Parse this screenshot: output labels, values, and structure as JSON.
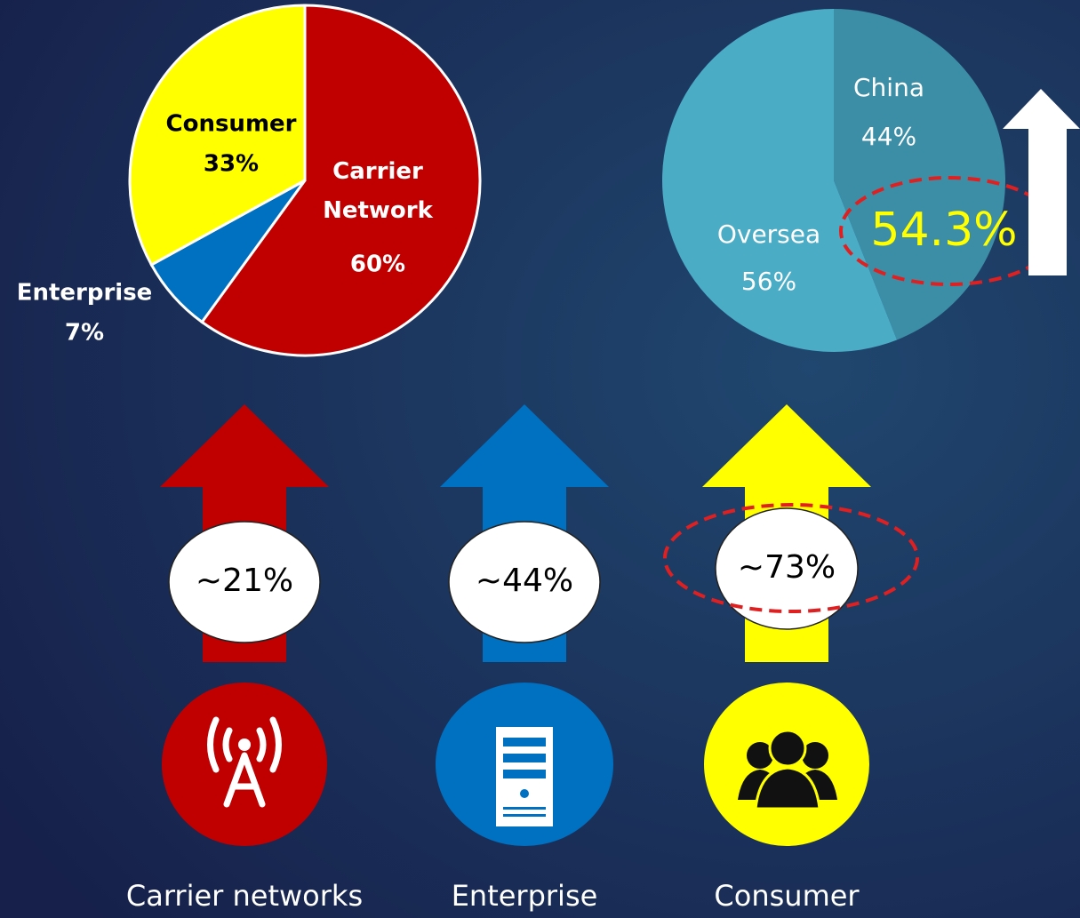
{
  "chart_data": [
    {
      "type": "pie",
      "categories": [
        "Carrier Network",
        "Enterprise",
        "Consumer"
      ],
      "values": [
        60,
        7,
        33
      ],
      "value_labels": [
        "60%",
        "7%",
        "33%"
      ],
      "colors": [
        "#c00000",
        "#0070c0",
        "#ffff00"
      ]
    },
    {
      "type": "pie",
      "categories": [
        "China",
        "Oversea"
      ],
      "values": [
        44,
        56
      ],
      "value_labels": [
        "44%",
        "56%"
      ],
      "colors": [
        "#3c8ea6",
        "#4bacc6"
      ],
      "annotation": "54.3%"
    }
  ],
  "growth": [
    {
      "label": "Carrier networks",
      "rate": "~21%",
      "color": "#c00000"
    },
    {
      "label": "Enterprise",
      "rate": "~44%",
      "color": "#0070c0"
    },
    {
      "label": "Consumer",
      "rate": "~73%",
      "color": "#ffff00"
    }
  ]
}
